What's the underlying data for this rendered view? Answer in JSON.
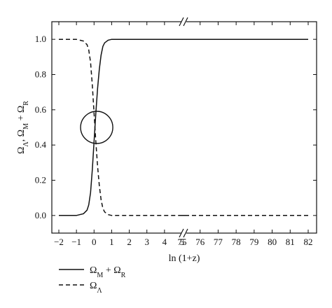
{
  "chart_data": {
    "type": "line",
    "title": "",
    "xlabel": "ln (1+z)",
    "ylabel": "Ω_Λ, Ω_M + Ω_R",
    "ylabel_parts": [
      "Ω",
      "Λ",
      ", Ω",
      "M",
      " + Ω",
      "R"
    ],
    "x_axis_broken": true,
    "x_segments": [
      {
        "range": [
          -2,
          5
        ],
        "ticks": [
          -2,
          -1,
          0,
          1,
          2,
          3,
          4,
          5
        ]
      },
      {
        "range": [
          75,
          82
        ],
        "ticks": [
          75,
          76,
          77,
          78,
          79,
          80,
          81,
          82
        ]
      }
    ],
    "ylim": [
      -0.1,
      1.1
    ],
    "yticks": [
      "0.0",
      "0.2",
      "0.4",
      "0.6",
      "0.8",
      "1.0"
    ],
    "grid": false,
    "legend_position": "bottom-left, below plot",
    "series": [
      {
        "name": "Ω_M + Ω_R",
        "label_parts": [
          "Ω",
          "M",
          " + Ω",
          "R"
        ],
        "style": "solid",
        "x": [
          -2,
          -1,
          -0.6,
          -0.4,
          -0.3,
          -0.2,
          -0.1,
          0,
          0.1,
          0.2,
          0.3,
          0.4,
          0.5,
          0.6,
          0.8,
          1.0,
          1.5,
          2,
          5,
          75,
          82
        ],
        "y": [
          0.0,
          0.0,
          0.01,
          0.03,
          0.06,
          0.13,
          0.26,
          0.42,
          0.58,
          0.72,
          0.83,
          0.91,
          0.96,
          0.98,
          0.995,
          1.0,
          1.0,
          1.0,
          1.0,
          1.0,
          1.0
        ]
      },
      {
        "name": "Ω_Λ",
        "label_parts": [
          "Ω",
          "Λ"
        ],
        "style": "dashed",
        "x": [
          -2,
          -1,
          -0.6,
          -0.4,
          -0.3,
          -0.2,
          -0.1,
          0,
          0.1,
          0.2,
          0.3,
          0.4,
          0.5,
          0.6,
          0.8,
          1.0,
          1.5,
          2,
          5,
          75,
          82
        ],
        "y": [
          1.0,
          1.0,
          0.99,
          0.97,
          0.94,
          0.87,
          0.74,
          0.58,
          0.42,
          0.28,
          0.17,
          0.09,
          0.04,
          0.02,
          0.005,
          0.0,
          0.0,
          0.0,
          0.0,
          0.0,
          0.0
        ]
      }
    ],
    "annotations": [
      {
        "type": "circle",
        "x": 0.15,
        "y": 0.5,
        "note": "intersection highlight"
      }
    ]
  }
}
